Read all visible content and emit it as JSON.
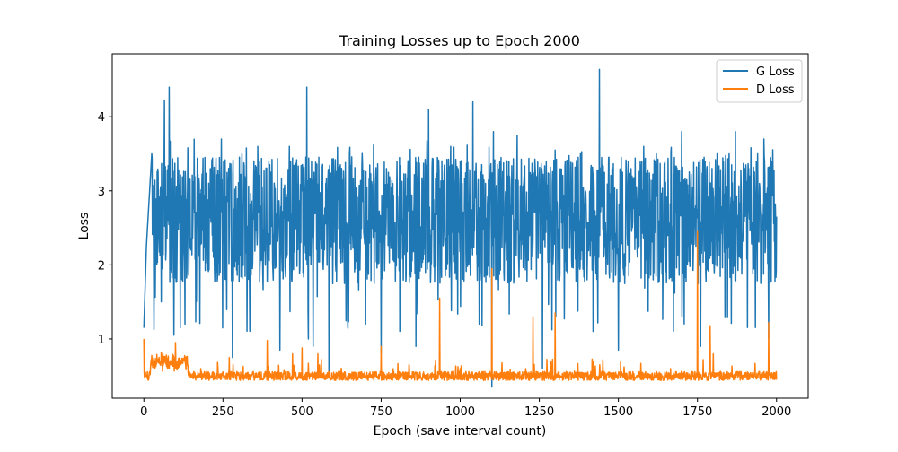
{
  "chart_data": {
    "type": "line",
    "title": "Training Losses up to Epoch 2000",
    "xlabel": "Epoch (save interval count)",
    "ylabel": "Loss",
    "xlim": [
      -100,
      2100
    ],
    "ylim": [
      0.2,
      4.85
    ],
    "xticks": [
      0,
      250,
      500,
      750,
      1000,
      1250,
      1500,
      1750,
      2000
    ],
    "yticks": [
      1,
      2,
      3,
      4
    ],
    "grid": false,
    "legend_position": "top-right",
    "series": [
      {
        "name": "G Loss",
        "color": "#1f77b4",
        "generator": "oscillating",
        "n_points": 2001,
        "baseline": 2.6,
        "spread": 0.45,
        "initial": 1.15,
        "key_points": [
          [
            0,
            1.15
          ],
          [
            8,
            2.25
          ],
          [
            25,
            3.5
          ],
          [
            30,
            2.7
          ],
          [
            45,
            3.25
          ],
          [
            55,
            1.5
          ],
          [
            65,
            4.22
          ],
          [
            75,
            2.6
          ],
          [
            80,
            4.4
          ],
          [
            95,
            1.05
          ],
          [
            105,
            2.2
          ],
          [
            115,
            1.15
          ],
          [
            120,
            1.8
          ],
          [
            130,
            1.2
          ],
          [
            140,
            3.0
          ],
          [
            170,
            2.6
          ],
          [
            210,
            3.3
          ],
          [
            245,
            3.7
          ],
          [
            270,
            2.5
          ],
          [
            280,
            0.75
          ],
          [
            310,
            3.5
          ],
          [
            360,
            3.6
          ],
          [
            395,
            3.4
          ],
          [
            430,
            0.85
          ],
          [
            460,
            3.6
          ],
          [
            500,
            3.0
          ],
          [
            515,
            4.4
          ],
          [
            520,
            1.0
          ],
          [
            535,
            0.9
          ],
          [
            545,
            3.3
          ],
          [
            585,
            0.55
          ],
          [
            650,
            3.5
          ],
          [
            700,
            3.2
          ],
          [
            750,
            0.8
          ],
          [
            800,
            3.4
          ],
          [
            860,
            0.9
          ],
          [
            900,
            4.1
          ],
          [
            940,
            2.5
          ],
          [
            970,
            3.6
          ],
          [
            1000,
            3.4
          ],
          [
            1040,
            4.2
          ],
          [
            1060,
            1.2
          ],
          [
            1080,
            3.1
          ],
          [
            1100,
            0.35
          ],
          [
            1105,
            3.8
          ],
          [
            1150,
            3.2
          ],
          [
            1180,
            3.75
          ],
          [
            1220,
            3.0
          ],
          [
            1260,
            0.6
          ],
          [
            1300,
            3.55
          ],
          [
            1340,
            3.0
          ],
          [
            1380,
            3.5
          ],
          [
            1420,
            1.1
          ],
          [
            1440,
            4.64
          ],
          [
            1460,
            2.4
          ],
          [
            1480,
            3.3
          ],
          [
            1500,
            0.85
          ],
          [
            1540,
            3.3
          ],
          [
            1580,
            3.6
          ],
          [
            1620,
            3.5
          ],
          [
            1660,
            2.5
          ],
          [
            1700,
            3.8
          ],
          [
            1740,
            2.5
          ],
          [
            1760,
            0.9
          ],
          [
            1790,
            3.1
          ],
          [
            1820,
            2.5
          ],
          [
            1850,
            3.5
          ],
          [
            1870,
            3.8
          ],
          [
            1900,
            3.3
          ],
          [
            1940,
            3.5
          ],
          [
            1960,
            3.7
          ],
          [
            1975,
            1.0
          ],
          [
            1990,
            3.0
          ],
          [
            2000,
            2.65
          ]
        ]
      },
      {
        "name": "D Loss",
        "color": "#ff7f0e",
        "generator": "noisy-floor",
        "n_points": 2001,
        "baseline": 0.5,
        "spread": 0.06,
        "initial": 1.0,
        "key_points": [
          [
            0,
            1.0
          ],
          [
            5,
            0.55
          ],
          [
            15,
            0.45
          ],
          [
            30,
            0.62
          ],
          [
            60,
            0.8
          ],
          [
            100,
            0.95
          ],
          [
            130,
            0.75
          ],
          [
            180,
            0.6
          ],
          [
            270,
            0.75
          ],
          [
            390,
            0.98
          ],
          [
            470,
            0.8
          ],
          [
            500,
            0.88
          ],
          [
            550,
            0.8
          ],
          [
            750,
            0.9
          ],
          [
            935,
            1.55
          ],
          [
            1000,
            0.6
          ],
          [
            1100,
            1.95
          ],
          [
            1230,
            1.3
          ],
          [
            1300,
            1.35
          ],
          [
            1420,
            0.7
          ],
          [
            1600,
            0.52
          ],
          [
            1665,
            0.6
          ],
          [
            1750,
            2.45
          ],
          [
            1790,
            1.18
          ],
          [
            1800,
            0.8
          ],
          [
            1975,
            1.22
          ],
          [
            2000,
            0.45
          ]
        ]
      }
    ]
  },
  "legend": {
    "g_loss_label": "G Loss",
    "d_loss_label": "D Loss"
  }
}
